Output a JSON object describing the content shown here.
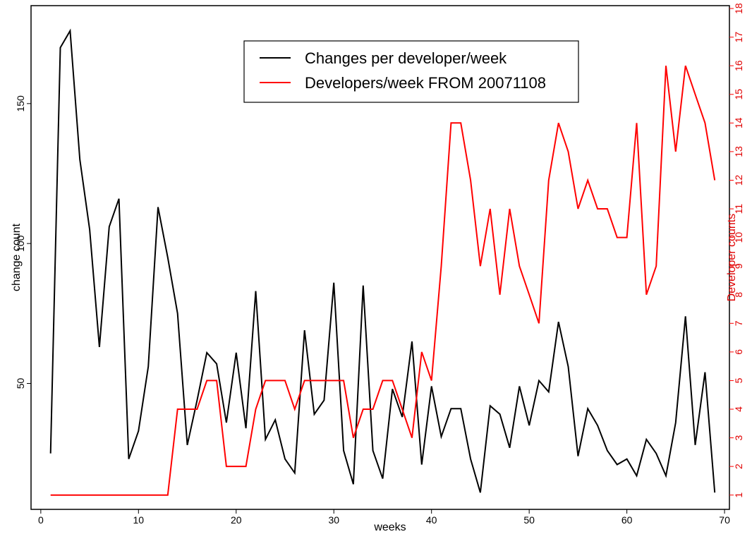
{
  "chart_data": {
    "type": "line",
    "xlabel": "weeks",
    "ylabel": "change count",
    "y2label": "Developer counts",
    "xlim": [
      -1,
      70.5
    ],
    "ylim": [
      5,
      185
    ],
    "y2lim": [
      0.5,
      18.1
    ],
    "x_ticks": [
      0,
      10,
      20,
      30,
      40,
      50,
      60,
      70
    ],
    "y_ticks": [
      50,
      100,
      150
    ],
    "y2_ticks": [
      1,
      2,
      3,
      4,
      5,
      6,
      7,
      8,
      9,
      10,
      11,
      12,
      13,
      14,
      15,
      16,
      17,
      18
    ],
    "grid": false,
    "legend_position": "top-center",
    "series": [
      {
        "name": "Changes per developer/week",
        "axis": "left",
        "color": "#000000",
        "x": [
          1,
          2,
          3,
          4,
          5,
          6,
          7,
          8,
          9,
          10,
          11,
          12,
          13,
          14,
          15,
          16,
          17,
          18,
          19,
          20,
          21,
          22,
          23,
          24,
          25,
          26,
          27,
          28,
          29,
          30,
          31,
          32,
          33,
          34,
          35,
          36,
          37,
          38,
          39,
          40,
          41,
          42,
          43,
          44,
          45,
          46,
          47,
          48,
          49,
          50,
          51,
          52,
          53,
          54,
          55,
          56,
          57,
          58,
          59,
          60,
          61,
          62,
          63,
          64,
          65,
          66,
          67,
          68,
          69
        ],
        "values": [
          25,
          170,
          176,
          130,
          105,
          63,
          106,
          116,
          23,
          33,
          56,
          113,
          95,
          75,
          28,
          44,
          61,
          57,
          36,
          61,
          34,
          83,
          30,
          37,
          23,
          18,
          69,
          39,
          44,
          86,
          26,
          14,
          85,
          26,
          16,
          48,
          38,
          65,
          21,
          49,
          31,
          41,
          41,
          23,
          11,
          42,
          39,
          27,
          49,
          35,
          51,
          47,
          72,
          56,
          24,
          41,
          35,
          26,
          21,
          23,
          17,
          30,
          25,
          17,
          36,
          74,
          28,
          54,
          11
        ]
      },
      {
        "name": "Developers/week FROM 20071108",
        "axis": "right",
        "color": "#ff0000",
        "x": [
          1,
          2,
          3,
          4,
          5,
          6,
          7,
          8,
          9,
          10,
          11,
          12,
          13,
          14,
          15,
          16,
          17,
          18,
          19,
          20,
          21,
          22,
          23,
          24,
          25,
          26,
          27,
          28,
          29,
          30,
          31,
          32,
          33,
          34,
          35,
          36,
          37,
          38,
          39,
          40,
          41,
          42,
          43,
          44,
          45,
          46,
          47,
          48,
          49,
          50,
          51,
          52,
          53,
          54,
          55,
          56,
          57,
          58,
          59,
          60,
          61,
          62,
          63,
          64,
          65,
          66,
          67,
          68,
          69
        ],
        "values": [
          1,
          1,
          1,
          1,
          1,
          1,
          1,
          1,
          1,
          1,
          1,
          1,
          1,
          4,
          4,
          4,
          5,
          5,
          2,
          2,
          2,
          4,
          5,
          5,
          5,
          4,
          5,
          5,
          5,
          5,
          5,
          3,
          4,
          4,
          5,
          5,
          4,
          3,
          6,
          5,
          9,
          14,
          14,
          12,
          9,
          11,
          8,
          11,
          9,
          8,
          7,
          12,
          14,
          13,
          11,
          12,
          11,
          11,
          10,
          10,
          14,
          8,
          9,
          16,
          13,
          16,
          15,
          14,
          12
        ]
      }
    ]
  }
}
